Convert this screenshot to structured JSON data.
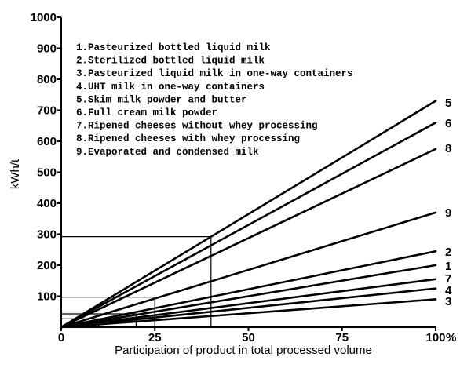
{
  "chart_data": {
    "type": "line",
    "xlabel": "Participation of product in total processed volume",
    "x_unit": "%",
    "ylabel": "kWh/t",
    "xlim": [
      0,
      100
    ],
    "ylim": [
      0,
      1000
    ],
    "x_ticks": [
      0,
      25,
      50,
      75,
      100
    ],
    "x_tick_labels": [
      "0",
      "25",
      "50",
      "75",
      "100"
    ],
    "y_ticks": [
      100,
      200,
      300,
      400,
      500,
      600,
      700,
      800,
      900,
      1000
    ],
    "y_tick_labels": [
      "100",
      "200",
      "300",
      "400",
      "500",
      "600",
      "700",
      "800",
      "900",
      "1000"
    ],
    "legend_placement": "top-left",
    "legend": [
      "1.Pasteurized bottled liquid milk",
      "2.Sterilized bottled liquid milk",
      "3.Pasteurized liquid milk in one-way containers",
      "4.UHT milk in one-way containers",
      "5.Skim milk powder and butter",
      "6.Full cream milk powder",
      "7.Ripened cheeses without whey processing",
      "8.Ripened cheeses with whey processing",
      "9.Evaporated and condensed milk"
    ],
    "series": [
      {
        "name": "5",
        "x": [
          0,
          100
        ],
        "y": [
          0,
          730
        ]
      },
      {
        "name": "6",
        "x": [
          0,
          100
        ],
        "y": [
          0,
          660
        ]
      },
      {
        "name": "8",
        "x": [
          0,
          100
        ],
        "y": [
          0,
          575
        ]
      },
      {
        "name": "9",
        "x": [
          0,
          100
        ],
        "y": [
          0,
          370
        ]
      },
      {
        "name": "2",
        "x": [
          0,
          100
        ],
        "y": [
          0,
          245
        ]
      },
      {
        "name": "1",
        "x": [
          0,
          100
        ],
        "y": [
          0,
          200
        ]
      },
      {
        "name": "7",
        "x": [
          0,
          100
        ],
        "y": [
          0,
          155
        ]
      },
      {
        "name": "4",
        "x": [
          0,
          100
        ],
        "y": [
          0,
          125
        ]
      },
      {
        "name": "3",
        "x": [
          0,
          100
        ],
        "y": [
          0,
          90
        ]
      }
    ],
    "reference_guides": [
      {
        "x": 40,
        "y": 292
      },
      {
        "x": 25,
        "y": 97
      },
      {
        "x": 20,
        "y": 43
      },
      {
        "x": 10,
        "y": 27
      }
    ],
    "grid": false
  }
}
